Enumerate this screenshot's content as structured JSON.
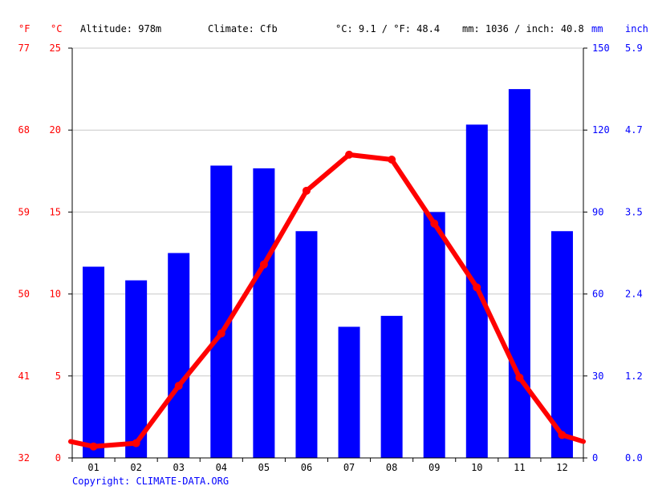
{
  "header": {
    "unit_f": "°F",
    "unit_c": "°C",
    "altitude": "Altitude: 978m",
    "climate": "Climate: Cfb",
    "temp_avg": "°C: 9.1 / °F: 48.4",
    "precip_total": "mm: 1036 / inch: 40.8",
    "unit_mm": "mm",
    "unit_inch": "inch"
  },
  "copyright": "Copyright: CLIMATE-DATA.ORG",
  "colors": {
    "precip_bar": "#0000ff",
    "temp_line": "#ff0000",
    "grid": "#c8c8c8",
    "axis": "#000000"
  },
  "chart_data": {
    "type": "bar",
    "title": "",
    "categories": [
      "01",
      "02",
      "03",
      "04",
      "05",
      "06",
      "07",
      "08",
      "09",
      "10",
      "11",
      "12"
    ],
    "series": [
      {
        "axis": "mm",
        "type": "bar",
        "values": [
          70,
          65,
          75,
          107,
          106,
          83,
          48,
          52,
          90,
          122,
          135,
          83
        ]
      },
      {
        "axis": "celsius",
        "type": "line",
        "values": [
          0.7,
          0.9,
          4.4,
          7.6,
          11.8,
          16.3,
          18.5,
          18.2,
          14.3,
          10.4,
          4.9,
          1.4
        ]
      }
    ],
    "edge_values": {
      "start": 1.0,
      "end": 1.0
    },
    "y_left_celsius": {
      "ylim": [
        0,
        25
      ],
      "ticks": [
        "0",
        "5",
        "10",
        "15",
        "20",
        "25"
      ]
    },
    "y_left_fahrenheit": {
      "ticks": [
        "32",
        "41",
        "50",
        "59",
        "68",
        "77"
      ]
    },
    "y_right_mm": {
      "ylim": [
        0,
        150
      ],
      "ticks": [
        "0",
        "30",
        "60",
        "90",
        "120",
        "150"
      ]
    },
    "y_right_inch": {
      "ticks": [
        "0.0",
        "1.2",
        "2.4",
        "3.5",
        "4.7",
        "5.9"
      ]
    },
    "grid": true,
    "legend": "none"
  }
}
